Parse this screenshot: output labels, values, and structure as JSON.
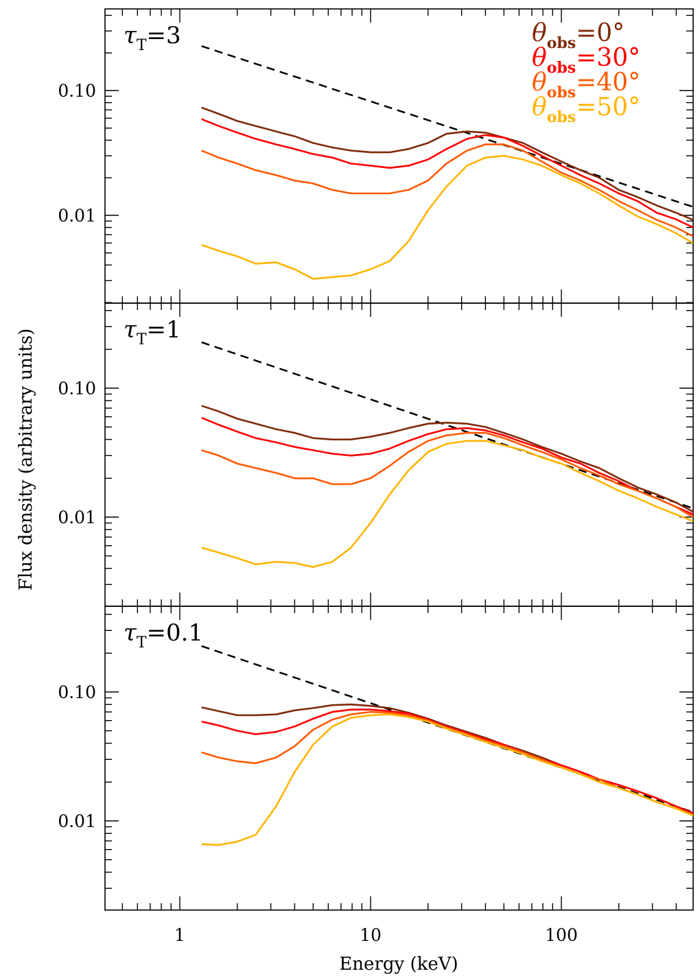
{
  "chart_data": {
    "type": "line",
    "xlabel": "Energy (keV)",
    "ylabel": "Flux density (arbitrary units)",
    "xscale": "log",
    "yscale": "log",
    "xlim": [
      0.405,
      490
    ],
    "ylim": [
      0.0018,
      0.46
    ],
    "x_tick_labels": [
      "1",
      "10",
      "100"
    ],
    "x_ticks": [
      1,
      10,
      100
    ],
    "y_tick_labels": [
      "0.10",
      "0.01"
    ],
    "y_ticks": [
      0.1,
      0.01
    ],
    "legend_placement": "top-right",
    "legend": [
      {
        "theta": "θ",
        "sub": "obs",
        "value": "=0°",
        "color": "#7f2a08"
      },
      {
        "theta": "θ",
        "sub": "obs",
        "value": "=30°",
        "color": "#ff0000"
      },
      {
        "theta": "θ",
        "sub": "obs",
        "value": "=40°",
        "color": "#ff5a00"
      },
      {
        "theta": "θ",
        "sub": "obs",
        "value": "=50°",
        "color": "#ffb400"
      }
    ],
    "reference_powerlaw": {
      "style": "dashed",
      "color": "#000000",
      "norm_at_1p3keV": 0.227,
      "photon_index_slope": -0.5
    },
    "x": [
      1.3,
      1.6,
      2.0,
      2.5,
      3.2,
      4.0,
      5.0,
      6.3,
      7.9,
      10,
      12.6,
      15.8,
      20,
      25,
      32,
      40,
      50,
      63,
      79,
      100,
      126,
      158,
      200,
      251,
      316,
      398,
      490
    ],
    "panels": [
      {
        "label_tau": "τ",
        "label_sub": "T",
        "label_value": "=3",
        "series": [
          {
            "name": "θobs=0°",
            "color": "#7f2a08",
            "values": [
              0.073,
              0.065,
              0.057,
              0.052,
              0.047,
              0.043,
              0.038,
              0.035,
              0.033,
              0.032,
              0.032,
              0.034,
              0.038,
              0.045,
              0.047,
              0.046,
              0.042,
              0.038,
              0.032,
              0.027,
              0.023,
              0.02,
              0.016,
              0.014,
              0.012,
              0.0105,
              0.0092
            ]
          },
          {
            "name": "θobs=30°",
            "color": "#ff0000",
            "values": [
              0.059,
              0.052,
              0.046,
              0.041,
              0.037,
              0.034,
              0.031,
              0.029,
              0.026,
              0.025,
              0.024,
              0.025,
              0.028,
              0.034,
              0.041,
              0.044,
              0.042,
              0.036,
              0.03,
              0.025,
              0.021,
              0.018,
              0.015,
              0.013,
              0.0105,
              0.0093,
              0.008
            ]
          },
          {
            "name": "θobs=40°",
            "color": "#ff5a00",
            "values": [
              0.033,
              0.029,
              0.026,
              0.023,
              0.021,
              0.019,
              0.018,
              0.016,
              0.015,
              0.015,
              0.015,
              0.016,
              0.019,
              0.026,
              0.033,
              0.037,
              0.037,
              0.033,
              0.027,
              0.022,
              0.019,
              0.016,
              0.013,
              0.011,
              0.0092,
              0.008,
              0.0068
            ]
          },
          {
            "name": "θobs=50°",
            "color": "#ffb400",
            "values": [
              0.0058,
              0.0052,
              0.0047,
              0.0041,
              0.0042,
              0.0037,
              0.0031,
              0.0032,
              0.0033,
              0.0037,
              0.0043,
              0.0062,
              0.011,
              0.017,
              0.025,
              0.029,
              0.03,
              0.028,
              0.025,
              0.021,
              0.018,
              0.015,
              0.012,
              0.0098,
              0.0085,
              0.0072,
              0.006
            ]
          }
        ]
      },
      {
        "label_tau": "τ",
        "label_sub": "T",
        "label_value": "=1",
        "series": [
          {
            "name": "θobs=0°",
            "color": "#7f2a08",
            "values": [
              0.073,
              0.066,
              0.058,
              0.053,
              0.048,
              0.045,
              0.041,
              0.04,
              0.04,
              0.042,
              0.045,
              0.049,
              0.053,
              0.054,
              0.053,
              0.05,
              0.045,
              0.04,
              0.035,
              0.031,
              0.027,
              0.024,
              0.02,
              0.017,
              0.015,
              0.013,
              0.011
            ]
          },
          {
            "name": "θobs=30°",
            "color": "#ff0000",
            "values": [
              0.059,
              0.052,
              0.046,
              0.041,
              0.038,
              0.035,
              0.033,
              0.031,
              0.03,
              0.031,
              0.034,
              0.039,
              0.044,
              0.048,
              0.049,
              0.047,
              0.043,
              0.038,
              0.034,
              0.029,
              0.026,
              0.022,
              0.019,
              0.016,
              0.014,
              0.012,
              0.0105
            ]
          },
          {
            "name": "θobs=40°",
            "color": "#ff5a00",
            "values": [
              0.033,
              0.03,
              0.026,
              0.024,
              0.022,
              0.02,
              0.02,
              0.018,
              0.018,
              0.02,
              0.025,
              0.032,
              0.039,
              0.043,
              0.045,
              0.045,
              0.041,
              0.036,
              0.032,
              0.028,
              0.024,
              0.021,
              0.018,
              0.016,
              0.014,
              0.012,
              0.01
            ]
          },
          {
            "name": "θobs=50°",
            "color": "#ffb400",
            "values": [
              0.0058,
              0.0053,
              0.0048,
              0.0043,
              0.0045,
              0.0044,
              0.0041,
              0.0045,
              0.0058,
              0.009,
              0.015,
              0.023,
              0.032,
              0.037,
              0.039,
              0.039,
              0.036,
              0.033,
              0.029,
              0.026,
              0.022,
              0.019,
              0.016,
              0.014,
              0.012,
              0.0105,
              0.0093
            ]
          }
        ]
      },
      {
        "label_tau": "τ",
        "label_sub": "T",
        "label_value": "=0.1",
        "series": [
          {
            "name": "θobs=0°",
            "color": "#7f2a08",
            "values": [
              0.076,
              0.071,
              0.066,
              0.066,
              0.067,
              0.072,
              0.075,
              0.079,
              0.08,
              0.078,
              0.075,
              0.069,
              0.062,
              0.055,
              0.049,
              0.044,
              0.039,
              0.035,
              0.031,
              0.027,
              0.024,
              0.021,
              0.019,
              0.017,
              0.015,
              0.013,
              0.0115
            ]
          },
          {
            "name": "θobs=30°",
            "color": "#ff0000",
            "values": [
              0.059,
              0.055,
              0.05,
              0.047,
              0.049,
              0.054,
              0.062,
              0.07,
              0.073,
              0.073,
              0.071,
              0.068,
              0.061,
              0.054,
              0.048,
              0.043,
              0.039,
              0.034,
              0.03,
              0.027,
              0.024,
              0.021,
              0.019,
              0.017,
              0.015,
              0.013,
              0.0115
            ]
          },
          {
            "name": "θobs=40°",
            "color": "#ff5a00",
            "values": [
              0.034,
              0.031,
              0.029,
              0.028,
              0.031,
              0.038,
              0.051,
              0.061,
              0.067,
              0.07,
              0.069,
              0.066,
              0.06,
              0.053,
              0.047,
              0.042,
              0.038,
              0.034,
              0.03,
              0.026,
              0.023,
              0.021,
              0.018,
              0.016,
              0.014,
              0.0125,
              0.0112
            ]
          },
          {
            "name": "θobs=50°",
            "color": "#ffb400",
            "values": [
              0.0066,
              0.0065,
              0.0069,
              0.0078,
              0.013,
              0.024,
              0.039,
              0.054,
              0.063,
              0.066,
              0.067,
              0.064,
              0.059,
              0.052,
              0.046,
              0.041,
              0.037,
              0.033,
              0.029,
              0.026,
              0.023,
              0.02,
              0.018,
              0.016,
              0.014,
              0.0125,
              0.011
            ]
          }
        ]
      }
    ]
  }
}
